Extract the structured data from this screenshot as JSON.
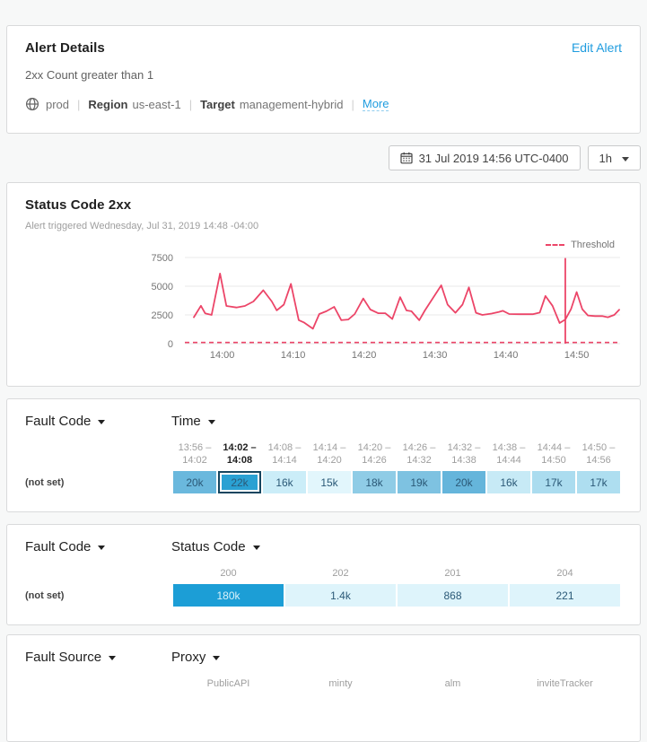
{
  "alert_details": {
    "title": "Alert Details",
    "edit_link": "Edit Alert",
    "condition": "2xx Count greater than 1",
    "environment": "prod",
    "region_label": "Region",
    "region": "us-east-1",
    "target_label": "Target",
    "target": "management-hybrid",
    "more_link": "More"
  },
  "toolbar": {
    "datetime": "31 Jul 2019 14:56 UTC-0400",
    "range": "1h"
  },
  "chart_data": {
    "type": "line",
    "title": "Status Code 2xx",
    "subtitle": "Alert triggered Wednesday, Jul 31, 2019 14:48 -04:00",
    "x_start": "13:56",
    "x_end": "14:56",
    "x_ticks": [
      {
        "label": "14:00",
        "offset_min": 4
      },
      {
        "label": "14:10",
        "offset_min": 14
      },
      {
        "label": "14:20",
        "offset_min": 24
      },
      {
        "label": "14:30",
        "offset_min": 34
      },
      {
        "label": "14:40",
        "offset_min": 44
      },
      {
        "label": "14:50",
        "offset_min": 54
      }
    ],
    "y_ticks": [
      0,
      2500,
      5000,
      7500
    ],
    "ylim": [
      0,
      7500
    ],
    "grid": true,
    "legend_position": "top-right",
    "line_color": "#ec4568",
    "grid_color": "#e8e8e8",
    "axis_text_color": "#757575",
    "threshold": {
      "label": "Threshold",
      "value": 100,
      "color": "#ec4568",
      "style": "dashed"
    },
    "alert_marker": {
      "time": "14:48",
      "offset_min": 52.4,
      "top_value": 7450
    },
    "series": [
      {
        "name": "2xx Count",
        "points_min_value": [
          [
            0,
            2300
          ],
          [
            1,
            3300
          ],
          [
            1.6,
            2640
          ],
          [
            2.5,
            2500
          ],
          [
            3.7,
            6100
          ],
          [
            4.6,
            3280
          ],
          [
            6,
            3150
          ],
          [
            7.2,
            3280
          ],
          [
            8.4,
            3670
          ],
          [
            9.8,
            4650
          ],
          [
            11,
            3670
          ],
          [
            11.7,
            2900
          ],
          [
            12.7,
            3400
          ],
          [
            13.7,
            5200
          ],
          [
            14.8,
            2050
          ],
          [
            15.5,
            1850
          ],
          [
            16.8,
            1300
          ],
          [
            17.7,
            2580
          ],
          [
            18.7,
            2820
          ],
          [
            19.8,
            3200
          ],
          [
            20.8,
            2050
          ],
          [
            21.8,
            2100
          ],
          [
            22.7,
            2580
          ],
          [
            23.9,
            3930
          ],
          [
            24.9,
            2970
          ],
          [
            26,
            2650
          ],
          [
            27,
            2650
          ],
          [
            28,
            2150
          ],
          [
            29.1,
            4050
          ],
          [
            30,
            2890
          ],
          [
            30.7,
            2820
          ],
          [
            31.8,
            2040
          ],
          [
            32.6,
            2890
          ],
          [
            34.9,
            5080
          ],
          [
            35.8,
            3400
          ],
          [
            36.9,
            2690
          ],
          [
            37.9,
            3400
          ],
          [
            38.8,
            4900
          ],
          [
            39.8,
            2690
          ],
          [
            40.7,
            2500
          ],
          [
            42,
            2620
          ],
          [
            43,
            2750
          ],
          [
            43.6,
            2860
          ],
          [
            44.5,
            2580
          ],
          [
            46,
            2560
          ],
          [
            47.8,
            2560
          ],
          [
            48.8,
            2700
          ],
          [
            49.6,
            4150
          ],
          [
            50.6,
            3300
          ],
          [
            51.6,
            1800
          ],
          [
            52.4,
            2100
          ],
          [
            53.2,
            3000
          ],
          [
            54,
            4490
          ],
          [
            54.8,
            3000
          ],
          [
            55.6,
            2450
          ],
          [
            56.6,
            2400
          ],
          [
            57.6,
            2400
          ],
          [
            58.4,
            2300
          ],
          [
            59.3,
            2500
          ],
          [
            60,
            2950
          ]
        ]
      }
    ]
  },
  "time_table": {
    "dimension_label": "Fault Code",
    "column_label": "Time",
    "row_label": "(not set)",
    "columns": [
      {
        "from": "13:56 –",
        "to": "14:02",
        "value": "20k",
        "bg": "#6ab8dd",
        "selected": false
      },
      {
        "from": "14:02 –",
        "to": "14:08",
        "value": "22k",
        "bg": "#2aa1d3",
        "selected": true
      },
      {
        "from": "14:08 –",
        "to": "14:14",
        "value": "16k",
        "bg": "#cbedf8",
        "selected": false
      },
      {
        "from": "14:14 –",
        "to": "14:20",
        "value": "15k",
        "bg": "#e2f6fc",
        "selected": false
      },
      {
        "from": "14:20 –",
        "to": "14:26",
        "value": "18k",
        "bg": "#8fcce6",
        "selected": false
      },
      {
        "from": "14:26 –",
        "to": "14:32",
        "value": "19k",
        "bg": "#7ec2e1",
        "selected": false
      },
      {
        "from": "14:32 –",
        "to": "14:38",
        "value": "20k",
        "bg": "#65b5db",
        "selected": false
      },
      {
        "from": "14:38 –",
        "to": "14:44",
        "value": "16k",
        "bg": "#c7eaf6",
        "selected": false
      },
      {
        "from": "14:44 –",
        "to": "14:50",
        "value": "17k",
        "bg": "#abdcef",
        "selected": false
      },
      {
        "from": "14:50 –",
        "to": "14:56",
        "value": "17k",
        "bg": "#aedef0",
        "selected": false
      }
    ]
  },
  "status_table": {
    "dimension_label": "Fault Code",
    "column_label": "Status Code",
    "row_label": "(not set)",
    "columns": [
      {
        "header": "200",
        "value": "180k",
        "bg": "#1c9ed6",
        "text_color": "#d9f2fb"
      },
      {
        "header": "202",
        "value": "1.4k",
        "bg": "#def4fb",
        "text_color": "#2b5977"
      },
      {
        "header": "201",
        "value": "868",
        "bg": "#def4fb",
        "text_color": "#2b5977"
      },
      {
        "header": "204",
        "value": "221",
        "bg": "#def4fb",
        "text_color": "#2b5977"
      }
    ]
  },
  "proxy_table": {
    "dimension_label": "Fault Source",
    "column_label": "Proxy",
    "columns": [
      {
        "header": "PublicAPI"
      },
      {
        "header": "minty"
      },
      {
        "header": "alm"
      },
      {
        "header": "inviteTracker"
      }
    ]
  },
  "colors": {
    "accent_blue": "#1f9cdf",
    "chart_pink": "#ec4568",
    "heatmap_selected_border": "#14455f",
    "page_background": "#f7f8f8"
  }
}
